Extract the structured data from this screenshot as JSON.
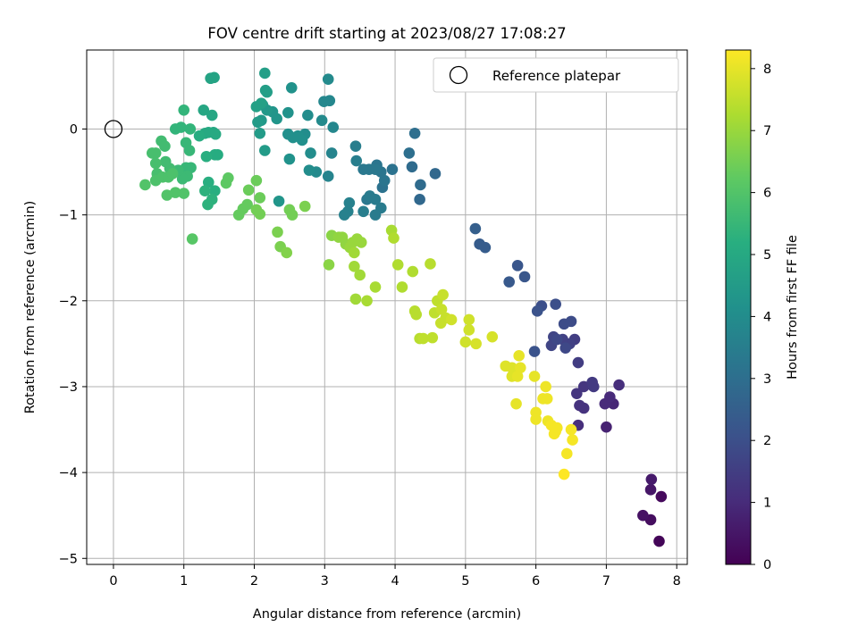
{
  "chart_data": {
    "type": "scatter",
    "title": "FOV centre drift starting at 2023/08/27 17:08:27",
    "xlabel": "Angular distance from reference (arcmin)",
    "ylabel": "Rotation from reference (arcmin)",
    "xlim": [
      -0.38,
      8.15
    ],
    "ylim": [
      -5.07,
      0.92
    ],
    "xticks": [
      0,
      1,
      2,
      3,
      4,
      5,
      6,
      7,
      8
    ],
    "yticks": [
      0,
      -1,
      -2,
      -3,
      -4,
      -5
    ],
    "grid": true,
    "legend": {
      "position": "top-right",
      "entries": [
        "Reference platepar"
      ]
    },
    "reference_point": {
      "x": 0,
      "y": 0,
      "label": "Reference platepar"
    },
    "colorbar": {
      "label": "Hours from first FF file",
      "colormap": "viridis",
      "range": [
        0,
        8.3
      ],
      "ticks": [
        0,
        1,
        2,
        3,
        4,
        5,
        6,
        7,
        8
      ]
    },
    "points": [
      {
        "x": 7.75,
        "y": -4.8,
        "h": 0.1
      },
      {
        "x": 7.78,
        "y": -4.28,
        "h": 0.2
      },
      {
        "x": 7.63,
        "y": -4.55,
        "h": 0.3
      },
      {
        "x": 7.52,
        "y": -4.5,
        "h": 0.4
      },
      {
        "x": 7.63,
        "y": -4.2,
        "h": 0.5
      },
      {
        "x": 7.64,
        "y": -4.08,
        "h": 0.6
      },
      {
        "x": 7.0,
        "y": -3.47,
        "h": 0.8
      },
      {
        "x": 7.1,
        "y": -3.2,
        "h": 0.9
      },
      {
        "x": 6.98,
        "y": -3.2,
        "h": 1.0
      },
      {
        "x": 7.05,
        "y": -3.12,
        "h": 1.0
      },
      {
        "x": 7.18,
        "y": -2.98,
        "h": 1.1
      },
      {
        "x": 6.6,
        "y": -3.45,
        "h": 1.1
      },
      {
        "x": 6.68,
        "y": -3.25,
        "h": 1.2
      },
      {
        "x": 6.62,
        "y": -3.22,
        "h": 1.2
      },
      {
        "x": 6.58,
        "y": -3.08,
        "h": 1.3
      },
      {
        "x": 6.68,
        "y": -3.0,
        "h": 1.3
      },
      {
        "x": 6.8,
        "y": -2.95,
        "h": 1.4
      },
      {
        "x": 6.82,
        "y": -3.0,
        "h": 1.4
      },
      {
        "x": 6.6,
        "y": -2.72,
        "h": 1.5
      },
      {
        "x": 6.55,
        "y": -2.45,
        "h": 1.5
      },
      {
        "x": 6.48,
        "y": -2.5,
        "h": 1.6
      },
      {
        "x": 6.38,
        "y": -2.45,
        "h": 1.6
      },
      {
        "x": 6.25,
        "y": -2.42,
        "h": 1.7
      },
      {
        "x": 6.22,
        "y": -2.52,
        "h": 1.7
      },
      {
        "x": 6.3,
        "y": -2.45,
        "h": 1.8
      },
      {
        "x": 6.42,
        "y": -2.55,
        "h": 1.8
      },
      {
        "x": 6.4,
        "y": -2.27,
        "h": 1.9
      },
      {
        "x": 6.5,
        "y": -2.24,
        "h": 1.9
      },
      {
        "x": 6.28,
        "y": -2.04,
        "h": 2.0
      },
      {
        "x": 6.08,
        "y": -2.06,
        "h": 2.0
      },
      {
        "x": 6.02,
        "y": -2.12,
        "h": 2.1
      },
      {
        "x": 5.98,
        "y": -2.59,
        "h": 2.1
      },
      {
        "x": 5.84,
        "y": -1.72,
        "h": 2.2
      },
      {
        "x": 5.74,
        "y": -1.59,
        "h": 2.2
      },
      {
        "x": 5.62,
        "y": -1.78,
        "h": 2.3
      },
      {
        "x": 5.28,
        "y": -1.38,
        "h": 2.4
      },
      {
        "x": 5.2,
        "y": -1.34,
        "h": 2.4
      },
      {
        "x": 5.14,
        "y": -1.16,
        "h": 2.5
      },
      {
        "x": 4.57,
        "y": -0.52,
        "h": 2.8
      },
      {
        "x": 4.35,
        "y": -0.82,
        "h": 2.8
      },
      {
        "x": 4.36,
        "y": -0.65,
        "h": 2.9
      },
      {
        "x": 4.24,
        "y": -0.44,
        "h": 2.9
      },
      {
        "x": 4.2,
        "y": -0.28,
        "h": 3.0
      },
      {
        "x": 4.28,
        "y": -0.05,
        "h": 3.0
      },
      {
        "x": 3.96,
        "y": -0.47,
        "h": 3.1
      },
      {
        "x": 3.82,
        "y": -0.68,
        "h": 3.1
      },
      {
        "x": 3.85,
        "y": -0.6,
        "h": 3.2
      },
      {
        "x": 3.8,
        "y": -0.5,
        "h": 3.2
      },
      {
        "x": 3.74,
        "y": -0.42,
        "h": 3.2
      },
      {
        "x": 3.72,
        "y": -0.47,
        "h": 3.3
      },
      {
        "x": 3.63,
        "y": -0.47,
        "h": 3.3
      },
      {
        "x": 3.55,
        "y": -0.47,
        "h": 3.3
      },
      {
        "x": 3.6,
        "y": -0.82,
        "h": 3.3
      },
      {
        "x": 3.64,
        "y": -0.78,
        "h": 3.4
      },
      {
        "x": 3.72,
        "y": -0.82,
        "h": 3.4
      },
      {
        "x": 3.8,
        "y": -0.92,
        "h": 3.4
      },
      {
        "x": 3.72,
        "y": -1.0,
        "h": 3.4
      },
      {
        "x": 3.55,
        "y": -0.96,
        "h": 3.5
      },
      {
        "x": 3.45,
        "y": -0.37,
        "h": 3.5
      },
      {
        "x": 3.44,
        "y": -0.2,
        "h": 3.5
      },
      {
        "x": 3.35,
        "y": -0.86,
        "h": 3.6
      },
      {
        "x": 3.33,
        "y": -0.96,
        "h": 3.6
      },
      {
        "x": 3.28,
        "y": -1.0,
        "h": 3.6
      },
      {
        "x": 3.05,
        "y": -0.55,
        "h": 3.7
      },
      {
        "x": 3.1,
        "y": -0.28,
        "h": 3.7
      },
      {
        "x": 3.12,
        "y": 0.02,
        "h": 3.8
      },
      {
        "x": 3.07,
        "y": 0.33,
        "h": 3.8
      },
      {
        "x": 2.99,
        "y": 0.32,
        "h": 3.8
      },
      {
        "x": 3.05,
        "y": 0.58,
        "h": 3.9
      },
      {
        "x": 2.96,
        "y": 0.1,
        "h": 3.9
      },
      {
        "x": 2.88,
        "y": -0.5,
        "h": 3.9
      },
      {
        "x": 2.78,
        "y": -0.48,
        "h": 4.0
      },
      {
        "x": 2.8,
        "y": -0.28,
        "h": 4.0
      },
      {
        "x": 2.72,
        "y": -0.06,
        "h": 4.0
      },
      {
        "x": 2.76,
        "y": 0.16,
        "h": 4.0
      },
      {
        "x": 2.68,
        "y": -0.13,
        "h": 4.1
      },
      {
        "x": 2.62,
        "y": -0.08,
        "h": 4.1
      },
      {
        "x": 2.55,
        "y": -0.1,
        "h": 4.1
      },
      {
        "x": 2.48,
        "y": -0.06,
        "h": 4.1
      },
      {
        "x": 2.5,
        "y": -0.35,
        "h": 4.2
      },
      {
        "x": 2.53,
        "y": 0.48,
        "h": 4.2
      },
      {
        "x": 2.48,
        "y": 0.19,
        "h": 4.2
      },
      {
        "x": 2.35,
        "y": -0.84,
        "h": 4.3
      },
      {
        "x": 2.32,
        "y": 0.12,
        "h": 4.3
      },
      {
        "x": 2.26,
        "y": 0.2,
        "h": 4.3
      },
      {
        "x": 2.18,
        "y": 0.22,
        "h": 4.4
      },
      {
        "x": 2.12,
        "y": 0.28,
        "h": 4.4
      },
      {
        "x": 2.1,
        "y": 0.1,
        "h": 4.4
      },
      {
        "x": 2.08,
        "y": -0.05,
        "h": 4.5
      },
      {
        "x": 2.05,
        "y": 0.08,
        "h": 4.5
      },
      {
        "x": 2.15,
        "y": -0.25,
        "h": 4.5
      },
      {
        "x": 2.16,
        "y": 0.45,
        "h": 4.6
      },
      {
        "x": 2.18,
        "y": 0.43,
        "h": 4.6
      },
      {
        "x": 2.15,
        "y": 0.65,
        "h": 4.6
      },
      {
        "x": 2.1,
        "y": 0.3,
        "h": 4.7
      },
      {
        "x": 2.03,
        "y": 0.26,
        "h": 4.7
      },
      {
        "x": 1.43,
        "y": 0.6,
        "h": 4.8
      },
      {
        "x": 1.38,
        "y": 0.59,
        "h": 4.8
      },
      {
        "x": 1.28,
        "y": 0.22,
        "h": 4.9
      },
      {
        "x": 1.4,
        "y": 0.16,
        "h": 4.9
      },
      {
        "x": 1.42,
        "y": -0.04,
        "h": 4.9
      },
      {
        "x": 1.45,
        "y": -0.06,
        "h": 5.0
      },
      {
        "x": 1.35,
        "y": -0.04,
        "h": 5.0
      },
      {
        "x": 1.3,
        "y": -0.05,
        "h": 5.0
      },
      {
        "x": 1.22,
        "y": -0.08,
        "h": 5.1
      },
      {
        "x": 1.48,
        "y": -0.3,
        "h": 5.1
      },
      {
        "x": 1.44,
        "y": -0.3,
        "h": 5.1
      },
      {
        "x": 1.32,
        "y": -0.32,
        "h": 5.2
      },
      {
        "x": 1.35,
        "y": -0.62,
        "h": 5.2
      },
      {
        "x": 1.44,
        "y": -0.72,
        "h": 5.2
      },
      {
        "x": 1.4,
        "y": -0.82,
        "h": 5.3
      },
      {
        "x": 1.34,
        "y": -0.88,
        "h": 5.3
      },
      {
        "x": 1.3,
        "y": -0.72,
        "h": 5.3
      },
      {
        "x": 1.0,
        "y": 0.22,
        "h": 5.4
      },
      {
        "x": 1.09,
        "y": 0.0,
        "h": 5.4
      },
      {
        "x": 0.96,
        "y": 0.02,
        "h": 5.4
      },
      {
        "x": 0.88,
        "y": 0.0,
        "h": 5.4
      },
      {
        "x": 1.03,
        "y": -0.16,
        "h": 5.5
      },
      {
        "x": 1.08,
        "y": -0.25,
        "h": 5.5
      },
      {
        "x": 1.1,
        "y": -0.45,
        "h": 5.5
      },
      {
        "x": 1.03,
        "y": -0.45,
        "h": 5.5
      },
      {
        "x": 1.05,
        "y": -0.55,
        "h": 5.6
      },
      {
        "x": 0.98,
        "y": -0.58,
        "h": 5.6
      },
      {
        "x": 0.92,
        "y": -0.48,
        "h": 5.6
      },
      {
        "x": 0.85,
        "y": -0.5,
        "h": 5.6
      },
      {
        "x": 0.8,
        "y": -0.46,
        "h": 5.7
      },
      {
        "x": 0.74,
        "y": -0.38,
        "h": 5.7
      },
      {
        "x": 0.68,
        "y": -0.14,
        "h": 5.7
      },
      {
        "x": 0.73,
        "y": -0.2,
        "h": 5.7
      },
      {
        "x": 0.6,
        "y": -0.28,
        "h": 5.8
      },
      {
        "x": 0.55,
        "y": -0.28,
        "h": 5.8
      },
      {
        "x": 0.6,
        "y": -0.4,
        "h": 5.8
      },
      {
        "x": 0.62,
        "y": -0.52,
        "h": 5.8
      },
      {
        "x": 0.6,
        "y": -0.6,
        "h": 5.9
      },
      {
        "x": 0.7,
        "y": -0.56,
        "h": 5.9
      },
      {
        "x": 0.78,
        "y": -0.56,
        "h": 5.9
      },
      {
        "x": 0.84,
        "y": -0.52,
        "h": 5.9
      },
      {
        "x": 0.88,
        "y": -0.74,
        "h": 6.0
      },
      {
        "x": 0.76,
        "y": -0.77,
        "h": 6.0
      },
      {
        "x": 0.45,
        "y": -0.65,
        "h": 6.0
      },
      {
        "x": 1.0,
        "y": -0.75,
        "h": 6.0
      },
      {
        "x": 1.12,
        "y": -1.28,
        "h": 6.1
      },
      {
        "x": 1.63,
        "y": -0.57,
        "h": 6.2
      },
      {
        "x": 1.6,
        "y": -0.63,
        "h": 6.2
      },
      {
        "x": 1.78,
        "y": -1.0,
        "h": 6.3
      },
      {
        "x": 1.84,
        "y": -0.93,
        "h": 6.3
      },
      {
        "x": 1.9,
        "y": -0.88,
        "h": 6.3
      },
      {
        "x": 1.92,
        "y": -0.71,
        "h": 6.4
      },
      {
        "x": 2.03,
        "y": -0.6,
        "h": 6.4
      },
      {
        "x": 2.08,
        "y": -0.8,
        "h": 6.4
      },
      {
        "x": 2.08,
        "y": -0.99,
        "h": 6.5
      },
      {
        "x": 2.03,
        "y": -0.94,
        "h": 6.5
      },
      {
        "x": 2.5,
        "y": -0.94,
        "h": 6.5
      },
      {
        "x": 2.54,
        "y": -1.0,
        "h": 6.5
      },
      {
        "x": 2.72,
        "y": -0.9,
        "h": 6.6
      },
      {
        "x": 2.33,
        "y": -1.2,
        "h": 6.6
      },
      {
        "x": 2.37,
        "y": -1.37,
        "h": 6.6
      },
      {
        "x": 2.46,
        "y": -1.44,
        "h": 6.7
      },
      {
        "x": 3.1,
        "y": -1.24,
        "h": 6.8
      },
      {
        "x": 3.06,
        "y": -1.58,
        "h": 6.8
      },
      {
        "x": 3.2,
        "y": -1.26,
        "h": 6.9
      },
      {
        "x": 3.25,
        "y": -1.26,
        "h": 6.9
      },
      {
        "x": 3.3,
        "y": -1.34,
        "h": 6.9
      },
      {
        "x": 3.36,
        "y": -1.38,
        "h": 7.0
      },
      {
        "x": 3.4,
        "y": -1.32,
        "h": 7.0
      },
      {
        "x": 3.46,
        "y": -1.28,
        "h": 7.0
      },
      {
        "x": 3.52,
        "y": -1.32,
        "h": 7.0
      },
      {
        "x": 3.42,
        "y": -1.44,
        "h": 7.1
      },
      {
        "x": 3.42,
        "y": -1.6,
        "h": 7.1
      },
      {
        "x": 3.5,
        "y": -1.7,
        "h": 7.1
      },
      {
        "x": 3.44,
        "y": -1.98,
        "h": 7.1
      },
      {
        "x": 3.6,
        "y": -2.0,
        "h": 7.2
      },
      {
        "x": 3.72,
        "y": -1.84,
        "h": 7.2
      },
      {
        "x": 3.95,
        "y": -1.18,
        "h": 7.2
      },
      {
        "x": 3.98,
        "y": -1.27,
        "h": 7.3
      },
      {
        "x": 4.04,
        "y": -1.58,
        "h": 7.3
      },
      {
        "x": 4.1,
        "y": -1.84,
        "h": 7.3
      },
      {
        "x": 4.25,
        "y": -1.66,
        "h": 7.3
      },
      {
        "x": 4.5,
        "y": -1.57,
        "h": 7.4
      },
      {
        "x": 4.28,
        "y": -2.12,
        "h": 7.4
      },
      {
        "x": 4.3,
        "y": -2.16,
        "h": 7.4
      },
      {
        "x": 4.35,
        "y": -2.44,
        "h": 7.4
      },
      {
        "x": 4.4,
        "y": -2.44,
        "h": 7.5
      },
      {
        "x": 4.53,
        "y": -2.43,
        "h": 7.5
      },
      {
        "x": 4.56,
        "y": -2.14,
        "h": 7.5
      },
      {
        "x": 4.6,
        "y": -2.0,
        "h": 7.5
      },
      {
        "x": 4.65,
        "y": -2.26,
        "h": 7.6
      },
      {
        "x": 4.68,
        "y": -1.93,
        "h": 7.6
      },
      {
        "x": 4.72,
        "y": -2.2,
        "h": 7.6
      },
      {
        "x": 4.66,
        "y": -2.1,
        "h": 7.6
      },
      {
        "x": 4.8,
        "y": -2.22,
        "h": 7.7
      },
      {
        "x": 5.0,
        "y": -2.48,
        "h": 7.7
      },
      {
        "x": 5.05,
        "y": -2.22,
        "h": 7.7
      },
      {
        "x": 5.05,
        "y": -2.34,
        "h": 7.7
      },
      {
        "x": 5.15,
        "y": -2.5,
        "h": 7.8
      },
      {
        "x": 5.38,
        "y": -2.42,
        "h": 7.8
      },
      {
        "x": 5.57,
        "y": -2.76,
        "h": 7.9
      },
      {
        "x": 5.66,
        "y": -2.78,
        "h": 7.9
      },
      {
        "x": 5.66,
        "y": -2.88,
        "h": 7.9
      },
      {
        "x": 5.74,
        "y": -2.88,
        "h": 8.0
      },
      {
        "x": 5.78,
        "y": -2.78,
        "h": 8.0
      },
      {
        "x": 5.76,
        "y": -2.64,
        "h": 8.0
      },
      {
        "x": 5.72,
        "y": -3.2,
        "h": 8.0
      },
      {
        "x": 5.98,
        "y": -2.88,
        "h": 8.0
      },
      {
        "x": 6.0,
        "y": -3.3,
        "h": 8.1
      },
      {
        "x": 6.0,
        "y": -3.38,
        "h": 8.1
      },
      {
        "x": 6.1,
        "y": -3.14,
        "h": 8.1
      },
      {
        "x": 6.14,
        "y": -3.0,
        "h": 8.1
      },
      {
        "x": 6.16,
        "y": -3.14,
        "h": 8.1
      },
      {
        "x": 6.17,
        "y": -3.4,
        "h": 8.1
      },
      {
        "x": 6.22,
        "y": -3.45,
        "h": 8.2
      },
      {
        "x": 6.28,
        "y": -3.52,
        "h": 8.2
      },
      {
        "x": 6.3,
        "y": -3.48,
        "h": 8.2
      },
      {
        "x": 6.26,
        "y": -3.55,
        "h": 8.2
      },
      {
        "x": 6.5,
        "y": -3.5,
        "h": 8.2
      },
      {
        "x": 6.52,
        "y": -3.62,
        "h": 8.2
      },
      {
        "x": 6.44,
        "y": -3.78,
        "h": 8.2
      },
      {
        "x": 6.4,
        "y": -4.02,
        "h": 8.3
      }
    ]
  }
}
